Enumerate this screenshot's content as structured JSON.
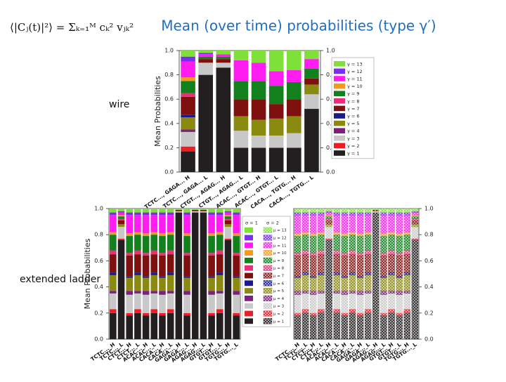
{
  "header": {
    "formula": "⟨|Cⱼ(t)|²⟩ = Σₖ₌₁ᴹ cₖ² vⱼₖ²",
    "title": "Mean (over time) probabilities (type γ′)"
  },
  "labels": {
    "wire": "wire",
    "ladder": "extended ladder"
  },
  "chart_data": [
    {
      "type": "bar",
      "stacked": true,
      "hatched": false,
      "y_axis_side": "both",
      "y_label": "Mean Probabilities",
      "categories": [
        "TCTC..., GAGA... H",
        "TCTC..., GAGA... L",
        "CTGT..., AGAG... H",
        "CTGT..., AGAG... L",
        "ACAC..., GTGT... H",
        "ACAC..., GTGT... L",
        "CACA..., TGTG... H",
        "CACA..., TGTG... L"
      ],
      "ylim": [
        0,
        1
      ],
      "yticks": [
        {
          "value": 0,
          "label": "0.0"
        },
        0.2,
        0.4,
        0.6,
        0.8,
        {
          "value": 1,
          "label": "1.0"
        }
      ],
      "series": [
        {
          "name": "γ = 1",
          "color": "#231f20",
          "values": [
            0.17,
            0.8,
            0.86,
            0.2,
            0.2,
            0.2,
            0.2,
            0.52
          ]
        },
        {
          "name": "γ = 2",
          "color": "#ee1c25",
          "values": [
            0.04,
            0,
            0,
            0,
            0,
            0,
            0,
            0
          ]
        },
        {
          "name": "γ = 3",
          "color": "#c8c8c8",
          "values": [
            0.12,
            0.1,
            0.04,
            0.14,
            0.1,
            0.1,
            0.12,
            0.12
          ]
        },
        {
          "name": "γ = 4",
          "color": "#7d1f7d",
          "values": [
            0.02,
            0,
            0,
            0,
            0,
            0,
            0,
            0
          ]
        },
        {
          "name": "γ = 5",
          "color": "#8a8a10",
          "values": [
            0.1,
            0,
            0,
            0.12,
            0.13,
            0.14,
            0.14,
            0.08
          ]
        },
        {
          "name": "γ = 6",
          "color": "#1a1a8c",
          "values": [
            0.02,
            0,
            0,
            0,
            0,
            0,
            0,
            0
          ]
        },
        {
          "name": "γ = 7",
          "color": "#7f1010",
          "values": [
            0.15,
            0.03,
            0.03,
            0.14,
            0.17,
            0.12,
            0.14,
            0.05
          ]
        },
        {
          "name": "γ = 8",
          "color": "#e8307a",
          "values": [
            0.03,
            0,
            0,
            0,
            0,
            0,
            0,
            0
          ]
        },
        {
          "name": "γ = 9",
          "color": "#12801c",
          "values": [
            0.1,
            0.02,
            0.02,
            0.15,
            0.15,
            0.15,
            0.14,
            0.08
          ]
        },
        {
          "name": "γ = 10",
          "color": "#f39a1e",
          "values": [
            0.03,
            0,
            0,
            0,
            0,
            0,
            0,
            0
          ]
        },
        {
          "name": "γ = 11",
          "color": "#ff1cf0",
          "values": [
            0.13,
            0.02,
            0.02,
            0.17,
            0.15,
            0.12,
            0.1,
            0.08
          ]
        },
        {
          "name": "γ = 12",
          "color": "#7a2ff0",
          "values": [
            0.04,
            0.01,
            0,
            0,
            0,
            0,
            0,
            0
          ]
        },
        {
          "name": "γ = 13",
          "color": "#7fe03a",
          "values": [
            0.05,
            0.02,
            0.03,
            0.08,
            0.1,
            0.17,
            0.16,
            0.07
          ]
        }
      ]
    },
    {
      "type": "bar",
      "stacked": true,
      "hatched": false,
      "y_axis_side": "left",
      "y_label": "Mean Probabilities",
      "categories": [
        "TCTC..._H",
        "TCTC..._L",
        "CTCT..._H",
        "CTCT..._L",
        "ACAC..._H",
        "ACAC..._L",
        "CACA..._H",
        "CACA..._L",
        "GAGA..._H",
        "GAGA..._L",
        "AGAG..._H",
        "AGAG..._L",
        "GTGT..._H",
        "GTGT..._L",
        "TGTG..._H",
        "TGTG..._L"
      ],
      "ylim": [
        0,
        1
      ],
      "yticks": [
        {
          "value": 0,
          "label": "0.0"
        },
        0.2,
        0.4,
        0.6,
        0.8,
        {
          "value": 1,
          "label": "1.0"
        }
      ],
      "series": [
        {
          "color": "#231f20",
          "values": [
            0.2,
            0.76,
            0.18,
            0.2,
            0.18,
            0.2,
            0.18,
            0.2,
            0.97,
            0.18,
            0.97,
            0.97,
            0.18,
            0.2,
            0.76,
            0.18
          ]
        },
        {
          "color": "#ee1c25",
          "values": [
            0.03,
            0.01,
            0.02,
            0.03,
            0.02,
            0.03,
            0.02,
            0.03,
            0,
            0.02,
            0,
            0,
            0.02,
            0.03,
            0.01,
            0.02
          ]
        },
        {
          "color": "#c8c8c8",
          "values": [
            0.12,
            0.09,
            0.14,
            0.12,
            0.14,
            0.12,
            0.14,
            0.12,
            0.01,
            0.14,
            0.01,
            0.01,
            0.14,
            0.12,
            0.09,
            0.14
          ]
        },
        {
          "color": "#7d1f7d",
          "values": [
            0.02,
            0,
            0.03,
            0.02,
            0.03,
            0.02,
            0.03,
            0.02,
            0,
            0.03,
            0,
            0,
            0.03,
            0.02,
            0,
            0.03
          ]
        },
        {
          "color": "#8a8a10",
          "values": [
            0.12,
            0.02,
            0.1,
            0.12,
            0.1,
            0.12,
            0.1,
            0.12,
            0,
            0.1,
            0,
            0,
            0.1,
            0.12,
            0.02,
            0.1
          ]
        },
        {
          "color": "#1a1a8c",
          "values": [
            0.02,
            0,
            0.01,
            0.02,
            0.01,
            0.02,
            0.01,
            0.02,
            0,
            0.01,
            0,
            0,
            0.01,
            0.02,
            0,
            0.01
          ]
        },
        {
          "color": "#7f1010",
          "values": [
            0.14,
            0.03,
            0.16,
            0.14,
            0.16,
            0.14,
            0.16,
            0.14,
            0.01,
            0.16,
            0.01,
            0.01,
            0.16,
            0.14,
            0.03,
            0.16
          ]
        },
        {
          "color": "#e8307a",
          "values": [
            0.03,
            0.01,
            0.02,
            0.03,
            0.02,
            0.03,
            0.02,
            0.03,
            0,
            0.02,
            0,
            0,
            0.02,
            0.03,
            0.01,
            0.02
          ]
        },
        {
          "color": "#12801c",
          "values": [
            0.12,
            0.02,
            0.13,
            0.12,
            0.13,
            0.12,
            0.13,
            0.12,
            0,
            0.13,
            0,
            0,
            0.13,
            0.12,
            0.02,
            0.13
          ]
        },
        {
          "color": "#f39a1e",
          "values": [
            0.02,
            0.01,
            0.02,
            0.02,
            0.02,
            0.02,
            0.02,
            0.02,
            0,
            0.02,
            0,
            0,
            0.02,
            0.02,
            0.01,
            0.02
          ]
        },
        {
          "color": "#ff1cf0",
          "values": [
            0.13,
            0.02,
            0.14,
            0.13,
            0.14,
            0.13,
            0.14,
            0.13,
            0,
            0.14,
            0,
            0,
            0.14,
            0.13,
            0.02,
            0.14
          ]
        },
        {
          "color": "#7a2ff0",
          "values": [
            0.02,
            0.01,
            0.02,
            0.02,
            0.02,
            0.02,
            0.02,
            0.02,
            0,
            0.02,
            0,
            0,
            0.02,
            0.02,
            0.01,
            0.02
          ]
        },
        {
          "color": "#7fe03a",
          "values": [
            0.03,
            0.02,
            0.03,
            0.03,
            0.03,
            0.03,
            0.03,
            0.03,
            0.01,
            0.03,
            0.01,
            0.01,
            0.03,
            0.03,
            0.02,
            0.03
          ]
        }
      ]
    },
    {
      "type": "bar",
      "stacked": true,
      "hatched": true,
      "y_axis_side": "right",
      "legend_headers": [
        "σ = 1",
        "σ = 2"
      ],
      "categories": [
        "TCTC..._H",
        "TCTC..._L",
        "CTCT..._H",
        "CTCT..._L",
        "ACAC..._H",
        "ACAC..._L",
        "CACA..._H",
        "CACA..._L",
        "GAGA..._H",
        "GAGA..._L",
        "AGAG..._H",
        "AGAG..._L",
        "GTGT..._H",
        "GTGT..._L",
        "TGTG..._H",
        "TGTG..._L"
      ],
      "ylim": [
        0,
        1
      ],
      "yticks": [
        {
          "value": 0,
          "label": "0.0"
        },
        0.2,
        0.4,
        0.6,
        0.8,
        {
          "value": 1,
          "label": "1.0"
        }
      ],
      "series": [
        {
          "name": "μ = 1",
          "color": "#231f20",
          "values": [
            0.18,
            0.2,
            0.18,
            0.2,
            0.76,
            0.2,
            0.18,
            0.2,
            0.18,
            0.2,
            0.97,
            0.18,
            0.2,
            0.18,
            0.2,
            0.76
          ]
        },
        {
          "name": "μ = 2",
          "color": "#ee1c25",
          "values": [
            0.02,
            0.03,
            0.02,
            0.03,
            0.01,
            0.03,
            0.02,
            0.03,
            0.02,
            0.03,
            0,
            0.02,
            0.03,
            0.02,
            0.03,
            0.01
          ]
        },
        {
          "name": "μ = 3",
          "color": "#c8c8c8",
          "values": [
            0.14,
            0.12,
            0.14,
            0.12,
            0.09,
            0.12,
            0.14,
            0.12,
            0.14,
            0.12,
            0.01,
            0.14,
            0.12,
            0.14,
            0.12,
            0.09
          ]
        },
        {
          "name": "μ = 4",
          "color": "#7d1f7d",
          "values": [
            0.03,
            0.02,
            0.03,
            0.02,
            0,
            0.02,
            0.03,
            0.02,
            0.03,
            0.02,
            0,
            0.03,
            0.02,
            0.03,
            0.02,
            0
          ]
        },
        {
          "name": "μ = 5",
          "color": "#8a8a10",
          "values": [
            0.1,
            0.12,
            0.1,
            0.12,
            0.02,
            0.12,
            0.1,
            0.12,
            0.1,
            0.12,
            0,
            0.1,
            0.12,
            0.1,
            0.12,
            0.02
          ]
        },
        {
          "name": "μ = 6",
          "color": "#1a1a8c",
          "values": [
            0.01,
            0.02,
            0.01,
            0.02,
            0,
            0.02,
            0.01,
            0.02,
            0.01,
            0.02,
            0,
            0.01,
            0.02,
            0.01,
            0.02,
            0
          ]
        },
        {
          "name": "μ = 7",
          "color": "#7f1010",
          "values": [
            0.16,
            0.14,
            0.16,
            0.14,
            0.03,
            0.14,
            0.16,
            0.14,
            0.16,
            0.14,
            0.01,
            0.16,
            0.14,
            0.16,
            0.14,
            0.03
          ]
        },
        {
          "name": "μ = 8",
          "color": "#e8307a",
          "values": [
            0.02,
            0.03,
            0.02,
            0.03,
            0.01,
            0.03,
            0.02,
            0.03,
            0.02,
            0.03,
            0,
            0.02,
            0.03,
            0.02,
            0.03,
            0.01
          ]
        },
        {
          "name": "μ = 9",
          "color": "#12801c",
          "values": [
            0.13,
            0.12,
            0.13,
            0.12,
            0.02,
            0.12,
            0.13,
            0.12,
            0.13,
            0.12,
            0,
            0.13,
            0.12,
            0.13,
            0.12,
            0.02
          ]
        },
        {
          "name": "μ = 10",
          "color": "#f39a1e",
          "values": [
            0.02,
            0.02,
            0.02,
            0.02,
            0.01,
            0.02,
            0.02,
            0.02,
            0.02,
            0.02,
            0,
            0.02,
            0.02,
            0.02,
            0.02,
            0.01
          ]
        },
        {
          "name": "μ = 11",
          "color": "#ff1cf0",
          "values": [
            0.14,
            0.13,
            0.14,
            0.13,
            0.02,
            0.13,
            0.14,
            0.13,
            0.14,
            0.13,
            0,
            0.14,
            0.13,
            0.14,
            0.13,
            0.02
          ]
        },
        {
          "name": "μ = 12",
          "color": "#7a2ff0",
          "values": [
            0.02,
            0.02,
            0.02,
            0.02,
            0.01,
            0.02,
            0.02,
            0.02,
            0.02,
            0.02,
            0,
            0.02,
            0.02,
            0.02,
            0.02,
            0.01
          ]
        },
        {
          "name": "μ = 13",
          "color": "#7fe03a",
          "values": [
            0.03,
            0.03,
            0.03,
            0.03,
            0.02,
            0.03,
            0.03,
            0.03,
            0.03,
            0.03,
            0.01,
            0.03,
            0.03,
            0.03,
            0.03,
            0.02
          ]
        }
      ]
    }
  ]
}
